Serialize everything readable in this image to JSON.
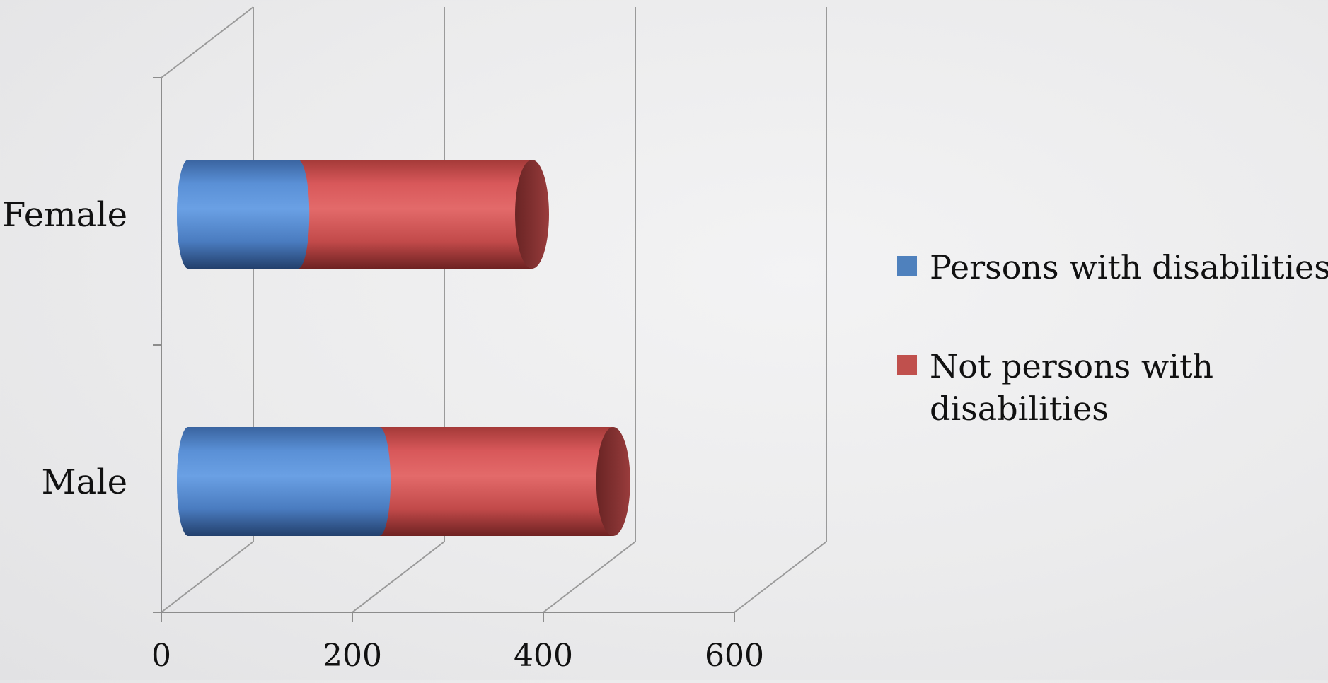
{
  "chart_data": {
    "type": "bar",
    "orientation": "horizontal",
    "stacked": true,
    "style": "3d-cylinder",
    "title": "",
    "xlabel": "",
    "ylabel": "",
    "categories": [
      "Male",
      "Female"
    ],
    "series": [
      {
        "name": "Persons with disabilities",
        "values": [
          200,
          115
        ],
        "color": "#4f81bd"
      },
      {
        "name": "Not persons with disabilities",
        "values": [
          245,
          245
        ],
        "color": "#c0504d"
      }
    ],
    "xlim": [
      0,
      700
    ],
    "xticks": [
      "0",
      "200",
      "400",
      "600"
    ],
    "xtick_values": [
      0,
      200,
      400,
      600
    ],
    "grid": true,
    "legend_position": "right",
    "legend": [
      {
        "lines": [
          "Persons with disabilities"
        ],
        "color": "#4f81bd"
      },
      {
        "lines": [
          "Not persons with",
          "disabilities"
        ],
        "color": "#c0504d"
      }
    ]
  }
}
